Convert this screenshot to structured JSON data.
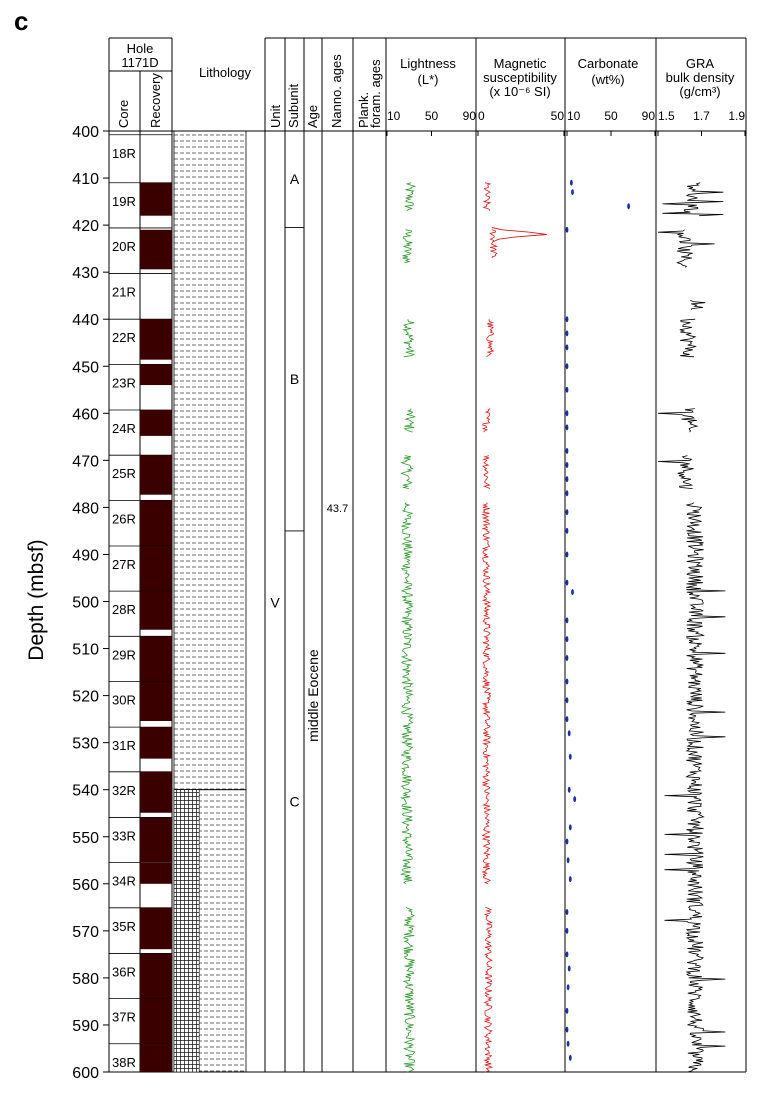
{
  "panel_label": "c",
  "hole": {
    "title_line1": "Hole",
    "title_line2": "1171D"
  },
  "columns": {
    "core": "Core",
    "recovery": "Recovery",
    "lithology": "Lithology",
    "unit": "Unit",
    "subunit": "Subunit",
    "age": "Age",
    "nanno": "Nanno. ages",
    "plank_line1": "Plank.",
    "plank_line2": "foram. ages",
    "lightness_line1": "Lightness",
    "lightness_line2": "(L*)",
    "magsus_line1": "Magnetic",
    "magsus_line2": "susceptibility",
    "magsus_line3": "(x 10⁻⁶ SI)",
    "carb_line1": "Carbonate",
    "carb_line2": "(wt%)",
    "gra_line1": "GRA",
    "gra_line2": "bulk density",
    "gra_line3": "(g/cm³)"
  },
  "y_axis": {
    "label": "Depth (mbsf)",
    "ticks": [
      "400",
      "410",
      "420",
      "430",
      "440",
      "450",
      "460",
      "470",
      "480",
      "490",
      "500",
      "510",
      "520",
      "530",
      "540",
      "550",
      "560",
      "570",
      "580",
      "590",
      "600"
    ]
  },
  "x_ticks": {
    "lightness": [
      "10",
      "50",
      "90"
    ],
    "magsus": [
      "0",
      "50"
    ],
    "carbonate": [
      "10",
      "50",
      "90"
    ],
    "gra": [
      "1.5",
      "1.7",
      "1.9"
    ]
  },
  "cores": [
    {
      "name": "18R",
      "top": 400.8,
      "recovered": []
    },
    {
      "name": "19R",
      "top": 411.0,
      "recovered": [
        [
          411.0,
          418.0
        ]
      ]
    },
    {
      "name": "20R",
      "top": 420.6,
      "recovered": [
        [
          421.0,
          429.4
        ]
      ]
    },
    {
      "name": "21R",
      "top": 430.3,
      "recovered": []
    },
    {
      "name": "22R",
      "top": 440.0,
      "recovered": [
        [
          440.0,
          448.6
        ]
      ]
    },
    {
      "name": "23R",
      "top": 449.6,
      "recovered": [
        [
          449.6,
          454.0
        ]
      ]
    },
    {
      "name": "24R",
      "top": 459.3,
      "recovered": [
        [
          459.3,
          464.8
        ]
      ]
    },
    {
      "name": "25R",
      "top": 468.9,
      "recovered": [
        [
          468.9,
          477.3
        ]
      ]
    },
    {
      "name": "26R",
      "top": 478.5,
      "recovered": [
        [
          478.5,
          488.2
        ]
      ]
    },
    {
      "name": "27R",
      "top": 488.2,
      "recovered": [
        [
          488.2,
          497.8
        ]
      ]
    },
    {
      "name": "28R",
      "top": 497.8,
      "recovered": [
        [
          497.8,
          506.0
        ]
      ]
    },
    {
      "name": "29R",
      "top": 507.4,
      "recovered": [
        [
          507.4,
          517.0
        ]
      ]
    },
    {
      "name": "30R",
      "top": 517.0,
      "recovered": [
        [
          517.0,
          525.4
        ]
      ]
    },
    {
      "name": "31R",
      "top": 526.7,
      "recovered": [
        [
          526.7,
          533.4
        ]
      ]
    },
    {
      "name": "32R",
      "top": 536.2,
      "recovered": [
        [
          536.2,
          544.9
        ]
      ]
    },
    {
      "name": "33R",
      "top": 545.9,
      "recovered": [
        [
          545.9,
          555.4
        ]
      ]
    },
    {
      "name": "34R",
      "top": 555.5,
      "recovered": [
        [
          555.5,
          560.0
        ]
      ]
    },
    {
      "name": "35R",
      "top": 565.1,
      "recovered": [
        [
          565.1,
          573.9
        ]
      ]
    },
    {
      "name": "36R",
      "top": 574.8,
      "recovered": [
        [
          574.8,
          584.4
        ]
      ]
    },
    {
      "name": "37R",
      "top": 584.4,
      "recovered": [
        [
          584.4,
          594.0
        ]
      ]
    },
    {
      "name": "38R",
      "top": 594.0,
      "recovered": [
        [
          594.0,
          600.0
        ]
      ]
    }
  ],
  "lithology_intervals": [
    {
      "from": 400,
      "to": 540,
      "pattern": "dashed"
    },
    {
      "from": 540,
      "to": 600,
      "pattern": "grid-over-dashed",
      "grid_fraction": 0.35
    }
  ],
  "unit": {
    "label": "V",
    "from": 400,
    "to": 600
  },
  "subunits": [
    {
      "label": "A",
      "from": 400,
      "to": 420.5
    },
    {
      "label": "B",
      "from": 420.5,
      "to": 485
    },
    {
      "label": "C",
      "from": 485,
      "to": 600
    }
  ],
  "age": {
    "label": "middle Eocene"
  },
  "nanno_age": {
    "label": "43.7",
    "depth": 481
  },
  "colors": {
    "recovery": "#3a0000",
    "lightness": "#2e9a2e",
    "magsus": "#dd1c1c",
    "carbonate": "#1a2fa0",
    "gra": "#000000",
    "grid": "#777777"
  },
  "carbonate_points": [
    [
      411,
      14
    ],
    [
      413,
      15
    ],
    [
      416,
      66
    ],
    [
      421,
      10
    ],
    [
      440,
      10
    ],
    [
      443,
      10
    ],
    [
      446,
      10
    ],
    [
      450,
      10
    ],
    [
      455,
      10
    ],
    [
      460,
      10
    ],
    [
      463,
      10
    ],
    [
      468,
      10
    ],
    [
      471,
      10
    ],
    [
      474,
      10
    ],
    [
      477,
      10
    ],
    [
      481,
      10
    ],
    [
      485,
      10
    ],
    [
      490,
      10
    ],
    [
      496,
      10
    ],
    [
      498,
      15
    ],
    [
      504,
      10
    ],
    [
      508,
      10
    ],
    [
      512,
      10
    ],
    [
      517,
      10
    ],
    [
      521,
      10
    ],
    [
      525,
      10
    ],
    [
      528,
      12
    ],
    [
      533,
      13
    ],
    [
      540,
      12
    ],
    [
      542,
      17
    ],
    [
      548,
      13
    ],
    [
      551,
      10
    ],
    [
      555,
      11
    ],
    [
      559,
      13
    ],
    [
      566,
      10
    ],
    [
      570,
      10
    ],
    [
      575,
      10
    ],
    [
      578,
      12
    ],
    [
      582,
      11
    ],
    [
      587,
      10
    ],
    [
      591,
      10
    ],
    [
      594,
      11
    ],
    [
      597,
      13
    ]
  ],
  "lightness_intervals": [
    [
      411,
      417,
      30
    ],
    [
      421,
      428,
      28
    ],
    [
      440,
      448,
      30
    ],
    [
      459,
      464,
      30
    ],
    [
      469,
      476,
      28
    ],
    [
      479,
      560,
      28
    ],
    [
      565,
      600,
      30
    ]
  ],
  "magsus_intervals": [
    [
      411,
      417,
      5
    ],
    [
      421,
      427,
      9
    ],
    [
      440,
      448,
      7
    ],
    [
      459,
      464,
      5
    ],
    [
      469,
      476,
      5
    ],
    [
      479,
      560,
      5
    ],
    [
      565,
      600,
      6
    ]
  ],
  "gra_intervals": [
    [
      411,
      418,
      1.66
    ],
    [
      421,
      429,
      1.62
    ],
    [
      436,
      438,
      1.68
    ],
    [
      440,
      448,
      1.64
    ],
    [
      459,
      464,
      1.64
    ],
    [
      469,
      476,
      1.63
    ],
    [
      479,
      600,
      1.67
    ]
  ]
}
